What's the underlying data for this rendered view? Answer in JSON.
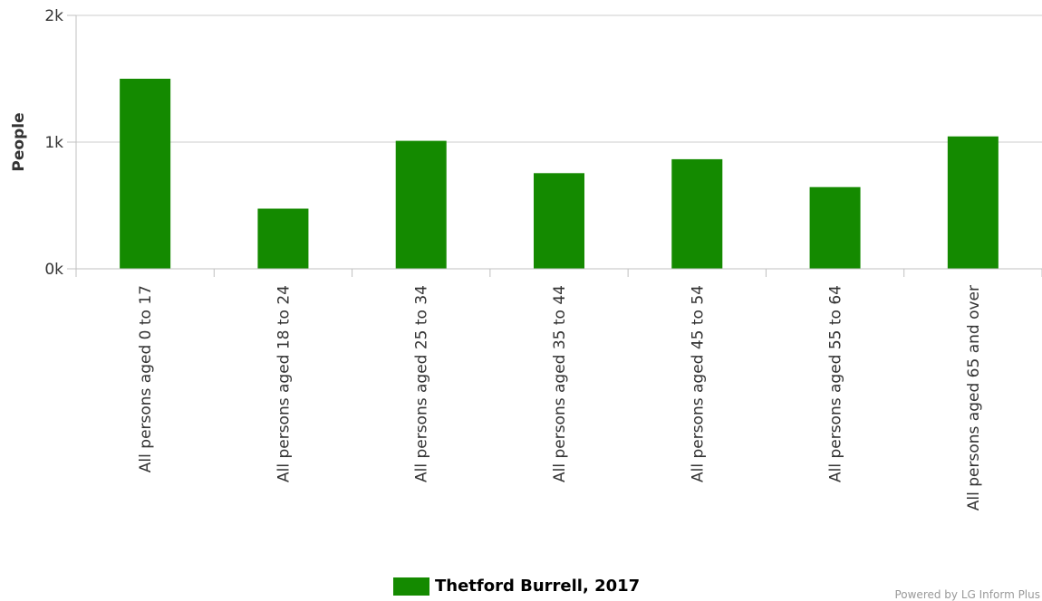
{
  "colors": {
    "bar": "#148A00",
    "grid": "#cccccc",
    "axis": "#c0c0c0",
    "text": "#333333"
  },
  "chart_data": {
    "type": "bar",
    "title": "",
    "xlabel": "",
    "ylabel": "People",
    "ylim": [
      0,
      2000
    ],
    "y_ticks": [
      0,
      1000,
      2000
    ],
    "y_tick_labels": [
      "0k",
      "1k",
      "2k"
    ],
    "grid": true,
    "legend_position": "bottom-center",
    "categories": [
      "All persons aged 0 to 17",
      "All persons aged 18 to 24",
      "All persons aged 25 to 34",
      "All persons aged 35 to 44",
      "All persons aged 45 to 54",
      "All persons aged 55 to 64",
      "All persons aged 65 and over"
    ],
    "series": [
      {
        "name": "Thetford Burrell, 2017",
        "values": [
          1500,
          475,
          1010,
          755,
          865,
          645,
          1045
        ]
      }
    ]
  },
  "legend": {
    "label": "Thetford Burrell, 2017"
  },
  "credit": "Powered by LG Inform Plus"
}
